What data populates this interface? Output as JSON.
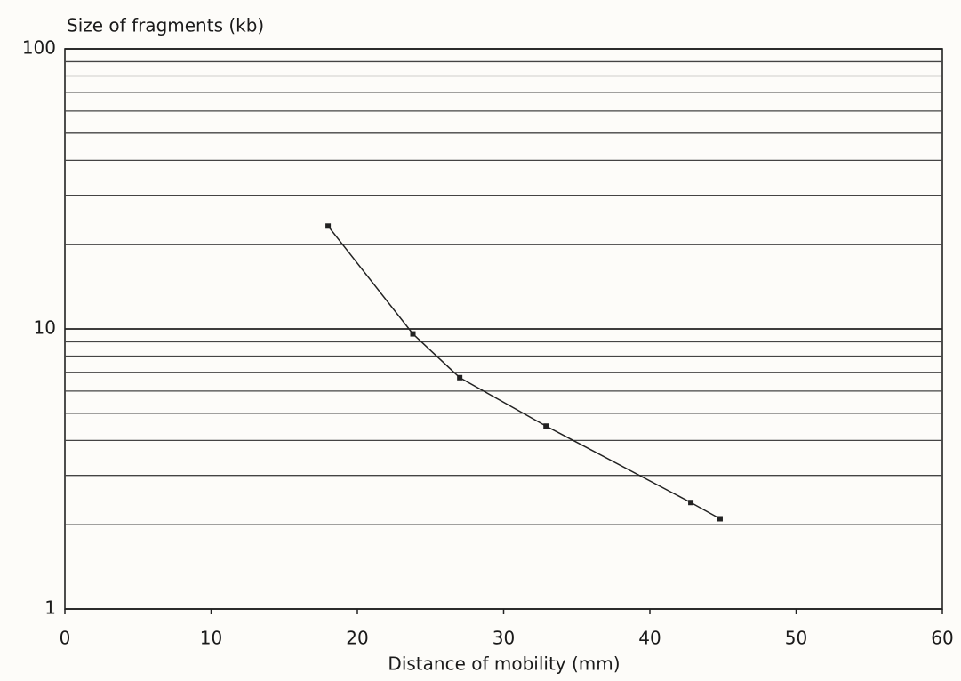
{
  "chart_data": {
    "type": "line",
    "y_label": "Size of fragments (kb)",
    "x_label": "Distance of mobility (mm)",
    "x": [
      18,
      23.8,
      27,
      32.9,
      42.8,
      44.8
    ],
    "values": [
      23.3,
      9.6,
      6.7,
      4.5,
      2.4,
      2.1
    ],
    "color": "#222222",
    "xlim": [
      0,
      60
    ],
    "xticks": [
      0,
      10,
      20,
      30,
      40,
      50,
      60
    ],
    "ylim": [
      1,
      100
    ],
    "yticks": [
      1,
      10,
      100
    ],
    "ygrid": [
      2,
      3,
      4,
      5,
      6,
      7,
      8,
      9,
      20,
      30,
      40,
      50,
      60,
      70,
      80,
      90
    ],
    "log_y": true,
    "grid": true
  }
}
